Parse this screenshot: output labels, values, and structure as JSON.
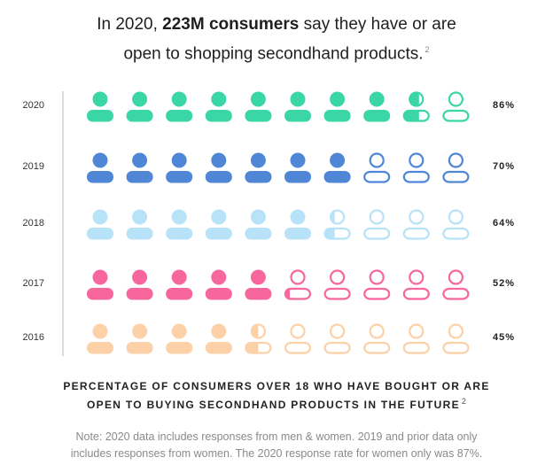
{
  "title": {
    "pre": "In 2020, ",
    "bold": "223M consumers",
    "mid": " say they have or are",
    "line2": "open to shopping secondhand products.",
    "footnote": "2"
  },
  "chart_data": {
    "type": "pictograph",
    "icons_per_row": 10,
    "rows": [
      {
        "year": "2020",
        "label": "86%",
        "value": 86,
        "color": "#3bd6a5"
      },
      {
        "year": "2019",
        "label": "70%",
        "value": 70,
        "color": "#4f86d6"
      },
      {
        "year": "2018",
        "label": "64%",
        "value": 64,
        "color": "#b7e2f8"
      },
      {
        "year": "2017",
        "label": "52%",
        "value": 52,
        "color": "#f7669c"
      },
      {
        "year": "2016",
        "label": "45%",
        "value": 45,
        "color": "#fcd1a8"
      }
    ]
  },
  "caption": {
    "line1": "PERCENTAGE OF CONSUMERS OVER 18 WHO HAVE BOUGHT OR ARE",
    "line2": "OPEN TO BUYING SECONDHAND PRODUCTS IN THE FUTURE",
    "footnote": "2"
  },
  "note": {
    "line1": "Note: 2020 data includes responses from men & women. 2019 and prior data only",
    "line2": "includes responses from women. The 2020 response rate for women only was 87%."
  }
}
